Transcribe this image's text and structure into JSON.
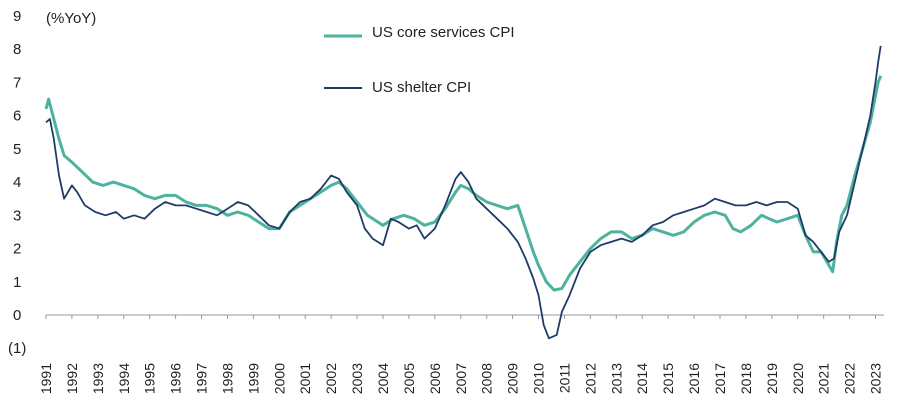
{
  "chart_data": {
    "type": "line",
    "title": "",
    "xlabel": "",
    "ylabel": "(%YoY)",
    "ylim": [
      -1,
      9
    ],
    "xlim": [
      1991,
      2023.25
    ],
    "y_ticks": [
      "9",
      "8",
      "7",
      "6",
      "5",
      "4",
      "3",
      "2",
      "1",
      "0",
      "(1)"
    ],
    "y_tick_values": [
      9,
      8,
      7,
      6,
      5,
      4,
      3,
      2,
      1,
      0,
      -1
    ],
    "x_ticks": [
      "1991",
      "1992",
      "1993",
      "1994",
      "1995",
      "1996",
      "1997",
      "1998",
      "1999",
      "2000",
      "2001",
      "2002",
      "2003",
      "2004",
      "2005",
      "2006",
      "2007",
      "2008",
      "2009",
      "2010",
      "2011",
      "2012",
      "2013",
      "2014",
      "2015",
      "2016",
      "2017",
      "2018",
      "2019",
      "2020",
      "2021",
      "2022",
      "2023"
    ],
    "grid": false,
    "legend_position": "top-center",
    "series": [
      {
        "name": "US core services CPI",
        "color": "#4db39e",
        "points": [
          [
            1991.0,
            6.2
          ],
          [
            1991.1,
            6.5
          ],
          [
            1991.3,
            5.9
          ],
          [
            1991.5,
            5.3
          ],
          [
            1991.7,
            4.8
          ],
          [
            1992.0,
            4.6
          ],
          [
            1992.4,
            4.3
          ],
          [
            1992.8,
            4.0
          ],
          [
            1993.2,
            3.9
          ],
          [
            1993.6,
            4.0
          ],
          [
            1994.0,
            3.9
          ],
          [
            1994.4,
            3.8
          ],
          [
            1994.8,
            3.6
          ],
          [
            1995.2,
            3.5
          ],
          [
            1995.6,
            3.6
          ],
          [
            1996.0,
            3.6
          ],
          [
            1996.4,
            3.4
          ],
          [
            1996.8,
            3.3
          ],
          [
            1997.2,
            3.3
          ],
          [
            1997.6,
            3.2
          ],
          [
            1998.0,
            3.0
          ],
          [
            1998.4,
            3.1
          ],
          [
            1998.8,
            3.0
          ],
          [
            1999.2,
            2.8
          ],
          [
            1999.6,
            2.6
          ],
          [
            2000.0,
            2.6
          ],
          [
            2000.4,
            3.1
          ],
          [
            2000.8,
            3.3
          ],
          [
            2001.2,
            3.5
          ],
          [
            2001.6,
            3.7
          ],
          [
            2002.0,
            3.9
          ],
          [
            2002.3,
            4.0
          ],
          [
            2002.6,
            3.8
          ],
          [
            2003.0,
            3.4
          ],
          [
            2003.4,
            3.0
          ],
          [
            2003.8,
            2.8
          ],
          [
            2004.0,
            2.7
          ],
          [
            2004.4,
            2.9
          ],
          [
            2004.8,
            3.0
          ],
          [
            2005.2,
            2.9
          ],
          [
            2005.6,
            2.7
          ],
          [
            2006.0,
            2.8
          ],
          [
            2006.4,
            3.2
          ],
          [
            2006.8,
            3.7
          ],
          [
            2007.0,
            3.9
          ],
          [
            2007.3,
            3.8
          ],
          [
            2007.6,
            3.6
          ],
          [
            2008.0,
            3.4
          ],
          [
            2008.4,
            3.3
          ],
          [
            2008.8,
            3.2
          ],
          [
            2009.2,
            3.3
          ],
          [
            2009.5,
            2.6
          ],
          [
            2009.8,
            1.9
          ],
          [
            2010.0,
            1.5
          ],
          [
            2010.3,
            1.0
          ],
          [
            2010.6,
            0.75
          ],
          [
            2010.9,
            0.8
          ],
          [
            2011.2,
            1.2
          ],
          [
            2011.6,
            1.6
          ],
          [
            2012.0,
            2.0
          ],
          [
            2012.4,
            2.3
          ],
          [
            2012.8,
            2.5
          ],
          [
            2013.2,
            2.5
          ],
          [
            2013.6,
            2.3
          ],
          [
            2014.0,
            2.4
          ],
          [
            2014.4,
            2.6
          ],
          [
            2014.8,
            2.5
          ],
          [
            2015.2,
            2.4
          ],
          [
            2015.6,
            2.5
          ],
          [
            2016.0,
            2.8
          ],
          [
            2016.4,
            3.0
          ],
          [
            2016.8,
            3.1
          ],
          [
            2017.2,
            3.0
          ],
          [
            2017.5,
            2.6
          ],
          [
            2017.8,
            2.5
          ],
          [
            2018.2,
            2.7
          ],
          [
            2018.6,
            3.0
          ],
          [
            2018.9,
            2.9
          ],
          [
            2019.2,
            2.8
          ],
          [
            2019.6,
            2.9
          ],
          [
            2020.0,
            3.0
          ],
          [
            2020.3,
            2.4
          ],
          [
            2020.6,
            1.9
          ],
          [
            2020.9,
            1.9
          ],
          [
            2021.2,
            1.5
          ],
          [
            2021.35,
            1.3
          ],
          [
            2021.5,
            2.2
          ],
          [
            2021.7,
            3.0
          ],
          [
            2021.9,
            3.3
          ],
          [
            2022.2,
            4.2
          ],
          [
            2022.5,
            5.0
          ],
          [
            2022.8,
            5.8
          ],
          [
            2023.0,
            6.6
          ],
          [
            2023.1,
            7.0
          ],
          [
            2023.2,
            7.2
          ]
        ]
      },
      {
        "name": "US shelter CPI",
        "color": "#1f3c66",
        "points": [
          [
            1991.0,
            5.8
          ],
          [
            1991.15,
            5.9
          ],
          [
            1991.3,
            5.3
          ],
          [
            1991.5,
            4.2
          ],
          [
            1991.7,
            3.5
          ],
          [
            1992.0,
            3.9
          ],
          [
            1992.2,
            3.7
          ],
          [
            1992.5,
            3.3
          ],
          [
            1992.9,
            3.1
          ],
          [
            1993.3,
            3.0
          ],
          [
            1993.7,
            3.1
          ],
          [
            1994.0,
            2.9
          ],
          [
            1994.4,
            3.0
          ],
          [
            1994.8,
            2.9
          ],
          [
            1995.2,
            3.2
          ],
          [
            1995.6,
            3.4
          ],
          [
            1996.0,
            3.3
          ],
          [
            1996.4,
            3.3
          ],
          [
            1996.8,
            3.2
          ],
          [
            1997.2,
            3.1
          ],
          [
            1997.6,
            3.0
          ],
          [
            1998.0,
            3.2
          ],
          [
            1998.4,
            3.4
          ],
          [
            1998.8,
            3.3
          ],
          [
            1999.2,
            3.0
          ],
          [
            1999.6,
            2.7
          ],
          [
            2000.0,
            2.6
          ],
          [
            2000.4,
            3.1
          ],
          [
            2000.8,
            3.4
          ],
          [
            2001.2,
            3.5
          ],
          [
            2001.6,
            3.8
          ],
          [
            2002.0,
            4.2
          ],
          [
            2002.3,
            4.1
          ],
          [
            2002.6,
            3.7
          ],
          [
            2003.0,
            3.3
          ],
          [
            2003.3,
            2.6
          ],
          [
            2003.6,
            2.3
          ],
          [
            2004.0,
            2.1
          ],
          [
            2004.3,
            2.9
          ],
          [
            2004.6,
            2.8
          ],
          [
            2005.0,
            2.6
          ],
          [
            2005.3,
            2.7
          ],
          [
            2005.6,
            2.3
          ],
          [
            2006.0,
            2.6
          ],
          [
            2006.4,
            3.3
          ],
          [
            2006.8,
            4.1
          ],
          [
            2007.0,
            4.3
          ],
          [
            2007.3,
            4.0
          ],
          [
            2007.6,
            3.5
          ],
          [
            2008.0,
            3.2
          ],
          [
            2008.4,
            2.9
          ],
          [
            2008.8,
            2.6
          ],
          [
            2009.2,
            2.2
          ],
          [
            2009.5,
            1.7
          ],
          [
            2009.8,
            1.1
          ],
          [
            2010.0,
            0.6
          ],
          [
            2010.2,
            -0.3
          ],
          [
            2010.4,
            -0.7
          ],
          [
            2010.7,
            -0.6
          ],
          [
            2010.9,
            0.1
          ],
          [
            2011.2,
            0.6
          ],
          [
            2011.6,
            1.4
          ],
          [
            2012.0,
            1.9
          ],
          [
            2012.4,
            2.1
          ],
          [
            2012.8,
            2.2
          ],
          [
            2013.2,
            2.3
          ],
          [
            2013.6,
            2.2
          ],
          [
            2014.0,
            2.4
          ],
          [
            2014.4,
            2.7
          ],
          [
            2014.8,
            2.8
          ],
          [
            2015.2,
            3.0
          ],
          [
            2015.6,
            3.1
          ],
          [
            2016.0,
            3.2
          ],
          [
            2016.4,
            3.3
          ],
          [
            2016.8,
            3.5
          ],
          [
            2017.2,
            3.4
          ],
          [
            2017.6,
            3.3
          ],
          [
            2018.0,
            3.3
          ],
          [
            2018.4,
            3.4
          ],
          [
            2018.8,
            3.3
          ],
          [
            2019.2,
            3.4
          ],
          [
            2019.6,
            3.4
          ],
          [
            2020.0,
            3.2
          ],
          [
            2020.3,
            2.4
          ],
          [
            2020.6,
            2.2
          ],
          [
            2020.9,
            1.9
          ],
          [
            2021.2,
            1.6
          ],
          [
            2021.4,
            1.7
          ],
          [
            2021.6,
            2.5
          ],
          [
            2021.9,
            3.0
          ],
          [
            2022.2,
            4.0
          ],
          [
            2022.5,
            5.0
          ],
          [
            2022.8,
            6.0
          ],
          [
            2023.0,
            7.0
          ],
          [
            2023.1,
            7.6
          ],
          [
            2023.2,
            8.1
          ]
        ]
      }
    ]
  }
}
